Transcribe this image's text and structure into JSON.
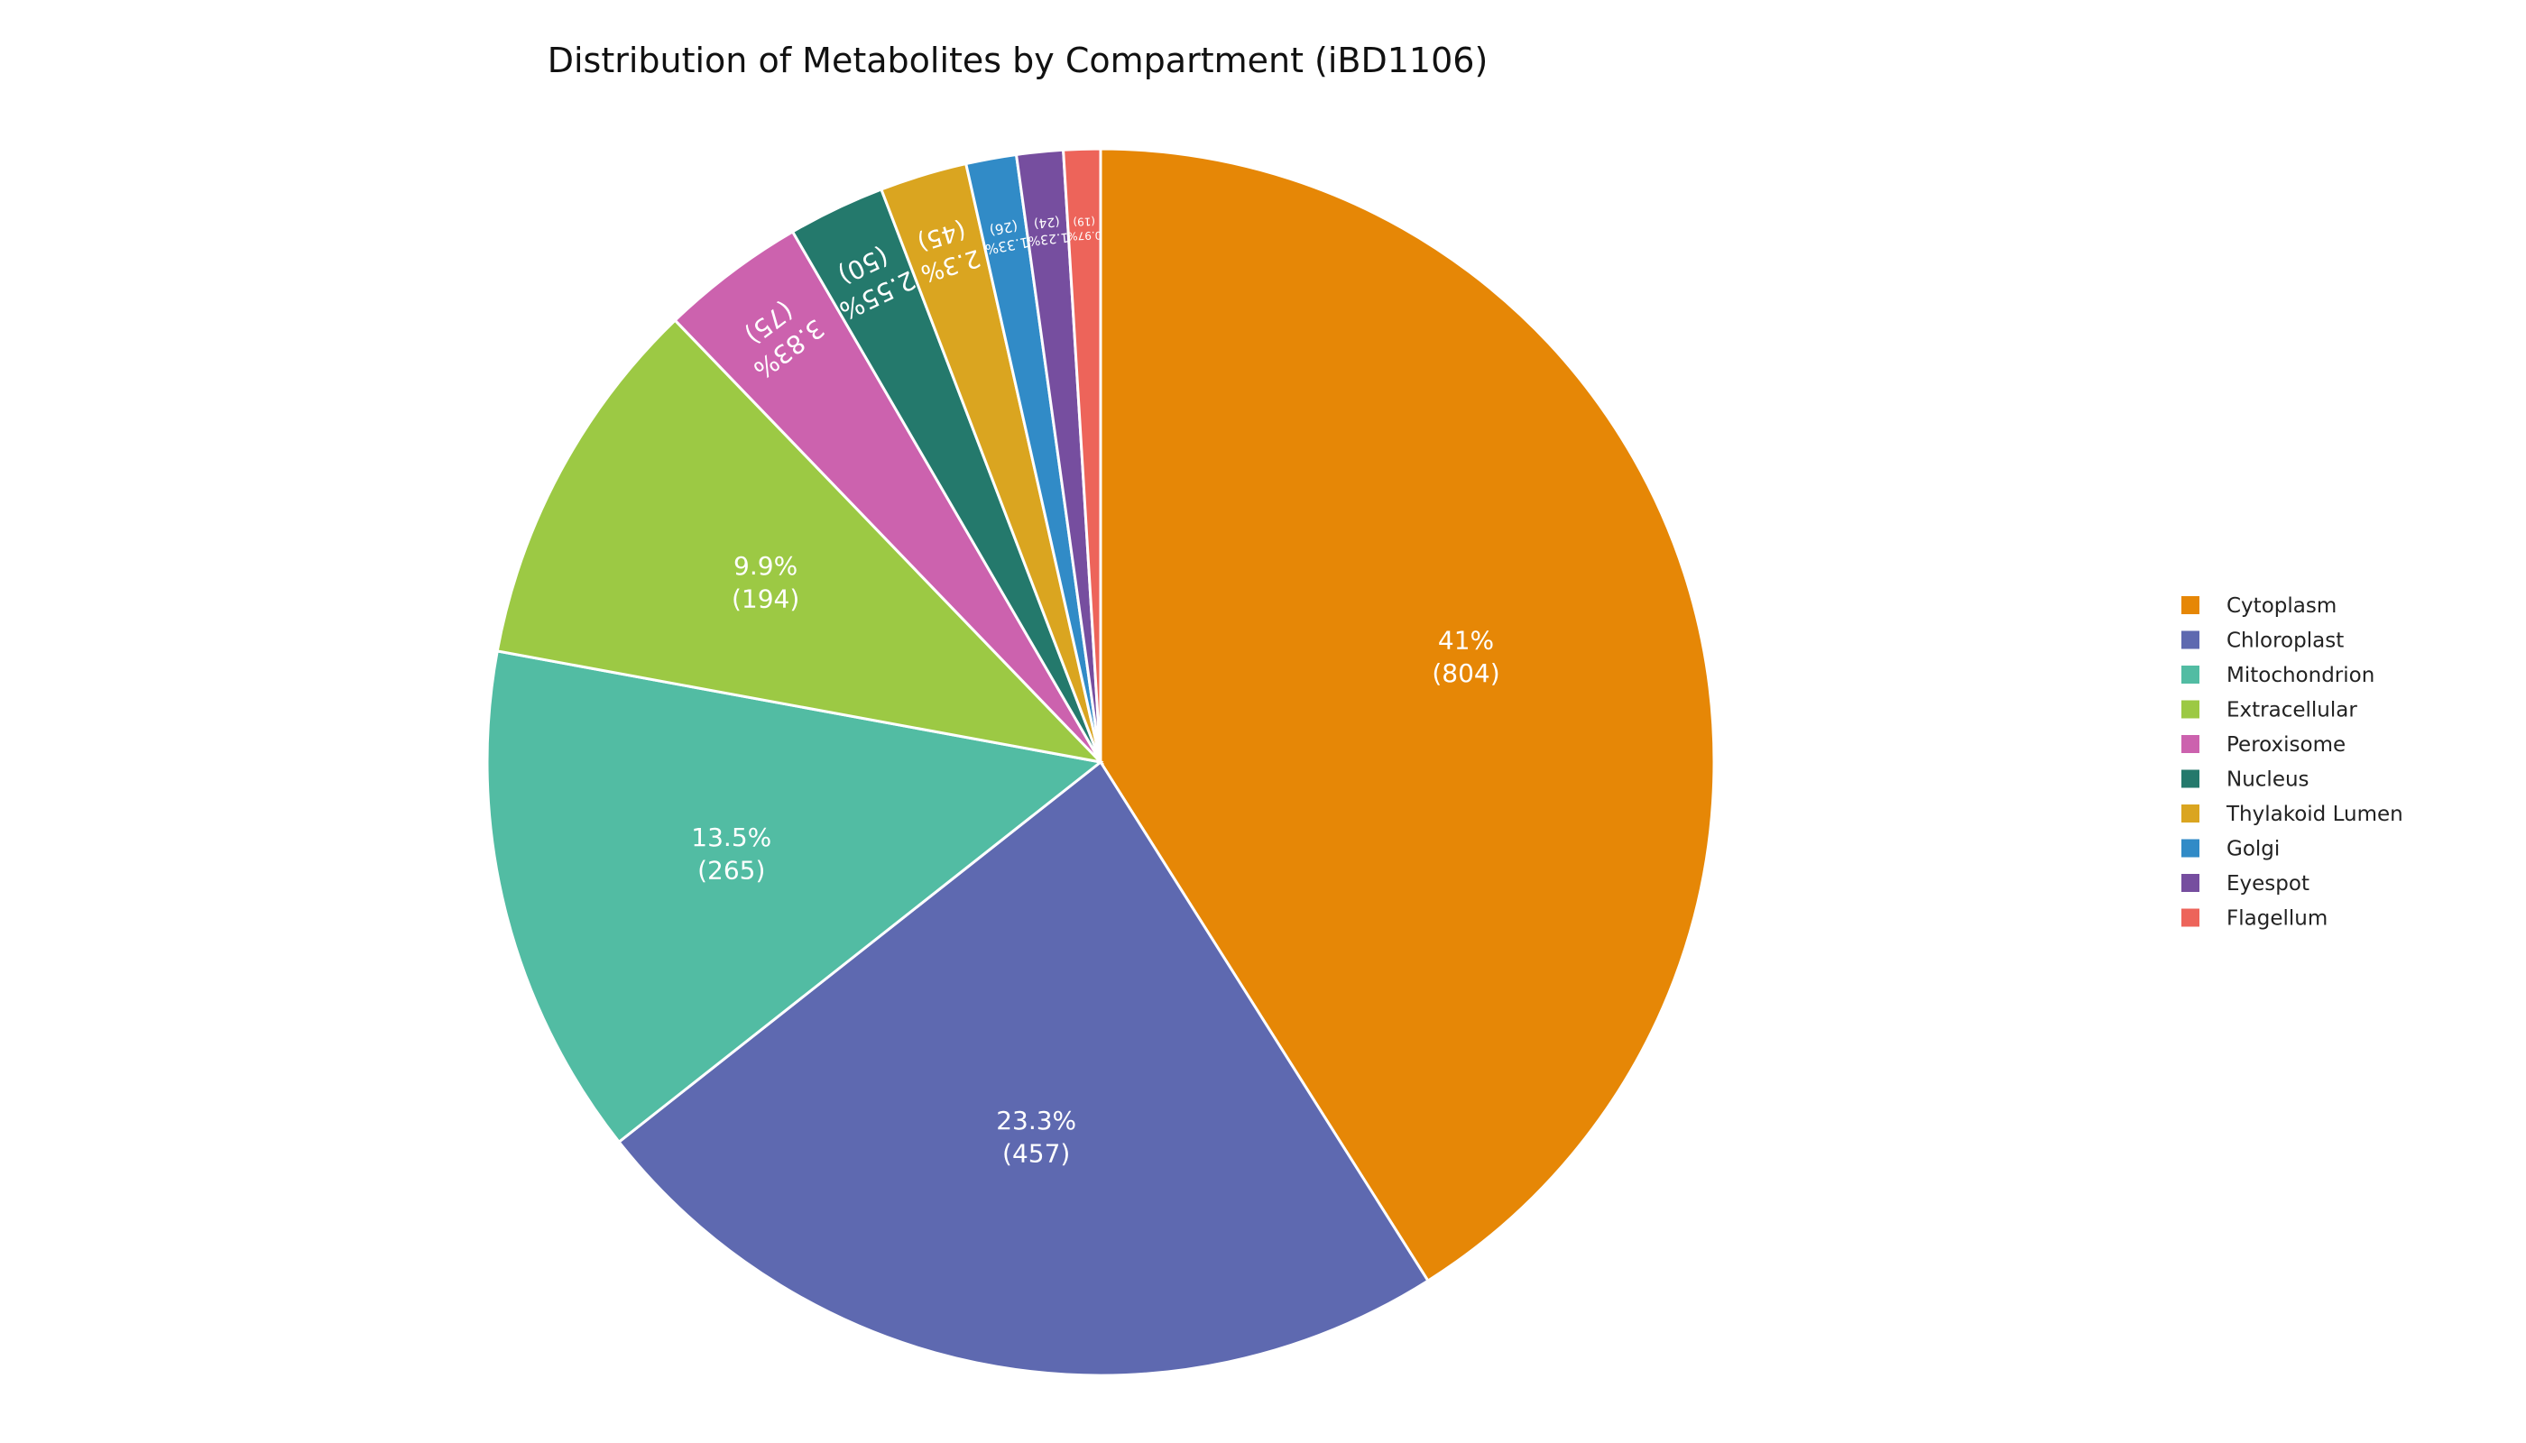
{
  "chart_data": {
    "type": "pie",
    "title": "Distribution of Metabolites by Compartment (iBD1106)",
    "legend_position": "right",
    "categories": [
      "Cytoplasm",
      "Chloroplast",
      "Mitochondrion",
      "Extracellular",
      "Peroxisome",
      "Nucleus",
      "Thylakoid Lumen",
      "Golgi",
      "Eyespot",
      "Flagellum"
    ],
    "values": [
      804,
      457,
      265,
      194,
      75,
      50,
      45,
      26,
      24,
      19
    ],
    "percent_labels": [
      "41%",
      "23.3%",
      "13.5%",
      "9.9%",
      "3.83%",
      "2.55%",
      "2.3%",
      "1.33%",
      "1.23%",
      "0.97%"
    ],
    "count_labels": [
      "(804)",
      "(457)",
      "(265)",
      "(194)",
      "(75)",
      "(50)",
      "(45)",
      "(26)",
      "(24)",
      "(19)"
    ],
    "colors": [
      "#E68706",
      "#5E69B0",
      "#52BCA3",
      "#9CC944",
      "#CC62AE",
      "#24796C",
      "#DAA520",
      "#318BC7",
      "#764E9F",
      "#ED645A"
    ]
  }
}
